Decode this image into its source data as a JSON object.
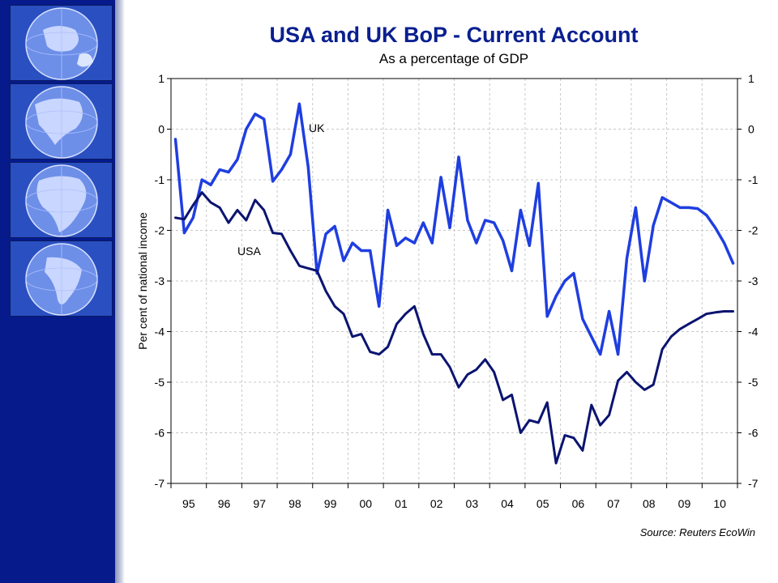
{
  "theme": {
    "sidebar_color": "#061a8c",
    "title_color": "#0a1f8f",
    "uk_color": "#1f3ee0",
    "usa_color": "#0b1470"
  },
  "sidebar": {
    "tiles": [
      {
        "icon": "globe-arctic-icon"
      },
      {
        "icon": "globe-north-america-icon"
      },
      {
        "icon": "globe-africa-icon"
      },
      {
        "icon": "globe-south-america-icon"
      }
    ]
  },
  "chart_data": {
    "type": "line",
    "title": "USA and UK BoP - Current Account",
    "subtitle": "As a percentage of GDP",
    "ylabel": "Per cent of national income",
    "source": "Source: Reuters EcoWin",
    "categories": [
      "95",
      "96",
      "97",
      "98",
      "99",
      "00",
      "01",
      "02",
      "03",
      "04",
      "05",
      "06",
      "07",
      "08",
      "09",
      "10"
    ],
    "x_range": [
      1995.0,
      2011.0
    ],
    "ylim": [
      -7,
      1
    ],
    "yticks": [
      1,
      0,
      -1,
      -2,
      -3,
      -4,
      -5,
      -6,
      -7
    ],
    "grid": true,
    "series": [
      {
        "name": "UK",
        "color": "#1f3ee0",
        "width": 3.5,
        "x": [
          1995.125,
          1995.375,
          1995.625,
          1995.875,
          1996.125,
          1996.375,
          1996.625,
          1996.875,
          1997.125,
          1997.375,
          1997.625,
          1997.875,
          1998.125,
          1998.375,
          1998.625,
          1998.875,
          1999.125,
          1999.375,
          1999.625,
          1999.875,
          2000.125,
          2000.375,
          2000.625,
          2000.875,
          2001.125,
          2001.375,
          2001.625,
          2001.875,
          2002.125,
          2002.375,
          2002.625,
          2002.875,
          2003.125,
          2003.375,
          2003.625,
          2003.875,
          2004.125,
          2004.375,
          2004.625,
          2004.875,
          2005.125,
          2005.375,
          2005.625,
          2005.875,
          2006.125,
          2006.375,
          2006.625,
          2006.875,
          2007.125,
          2007.375,
          2007.625,
          2007.875,
          2008.125,
          2008.375,
          2008.625,
          2008.875,
          2009.125,
          2009.375,
          2009.625,
          2009.875,
          2010.125,
          2010.375,
          2010.625,
          2010.875
        ],
        "values": [
          -0.2,
          -2.05,
          -1.75,
          -1.0,
          -1.1,
          -0.8,
          -0.85,
          -0.6,
          0.0,
          0.3,
          0.2,
          -1.03,
          -0.8,
          -0.5,
          0.5,
          -0.75,
          -2.85,
          -2.07,
          -1.92,
          -2.6,
          -2.25,
          -2.4,
          -2.4,
          -3.5,
          -1.6,
          -2.3,
          -2.15,
          -2.25,
          -1.85,
          -2.25,
          -0.95,
          -1.95,
          -0.55,
          -1.8,
          -2.25,
          -1.8,
          -1.85,
          -2.2,
          -2.8,
          -1.6,
          -2.3,
          -1.07,
          -3.7,
          -3.3,
          -3.0,
          -2.85,
          -3.75,
          -4.1,
          -4.45,
          -3.6,
          -4.45,
          -2.55,
          -1.55,
          -3.0,
          -1.9,
          -1.35,
          -1.45,
          -1.55,
          -1.55,
          -1.57,
          -1.7,
          -1.95,
          -2.25,
          -2.65
        ]
      },
      {
        "name": "USA",
        "color": "#0b1470",
        "width": 3,
        "x": [
          1995.125,
          1995.375,
          1995.625,
          1995.875,
          1996.125,
          1996.375,
          1996.625,
          1996.875,
          1997.125,
          1997.375,
          1997.625,
          1997.875,
          1998.125,
          1998.375,
          1998.625,
          1998.875,
          1999.125,
          1999.375,
          1999.625,
          1999.875,
          2000.125,
          2000.375,
          2000.625,
          2000.875,
          2001.125,
          2001.375,
          2001.625,
          2001.875,
          2002.125,
          2002.375,
          2002.625,
          2002.875,
          2003.125,
          2003.375,
          2003.625,
          2003.875,
          2004.125,
          2004.375,
          2004.625,
          2004.875,
          2005.125,
          2005.375,
          2005.625,
          2005.875,
          2006.125,
          2006.375,
          2006.625,
          2006.875,
          2007.125,
          2007.375,
          2007.625,
          2007.875,
          2008.125,
          2008.375,
          2008.625,
          2008.875,
          2009.125,
          2009.375,
          2009.625,
          2009.875,
          2010.125,
          2010.375,
          2010.625,
          2010.875
        ],
        "values": [
          -1.75,
          -1.78,
          -1.5,
          -1.25,
          -1.45,
          -1.55,
          -1.85,
          -1.6,
          -1.8,
          -1.4,
          -1.6,
          -2.05,
          -2.07,
          -2.4,
          -2.7,
          -2.75,
          -2.8,
          -3.2,
          -3.5,
          -3.65,
          -4.1,
          -4.05,
          -4.4,
          -4.45,
          -4.3,
          -3.85,
          -3.65,
          -3.5,
          -4.05,
          -4.45,
          -4.45,
          -4.7,
          -5.1,
          -4.85,
          -4.75,
          -4.55,
          -4.8,
          -5.35,
          -5.25,
          -6.0,
          -5.75,
          -5.8,
          -5.4,
          -6.6,
          -6.05,
          -6.1,
          -6.35,
          -5.45,
          -5.85,
          -5.65,
          -4.97,
          -4.8,
          -5.0,
          -5.15,
          -5.05,
          -4.35,
          -4.1,
          -3.95,
          -3.85,
          -3.75,
          -3.65,
          -3.62,
          -3.6,
          -3.6
        ]
      }
    ],
    "annotations": [
      {
        "text": "UK",
        "series": "UK"
      },
      {
        "text": "USA",
        "series": "USA"
      }
    ]
  }
}
